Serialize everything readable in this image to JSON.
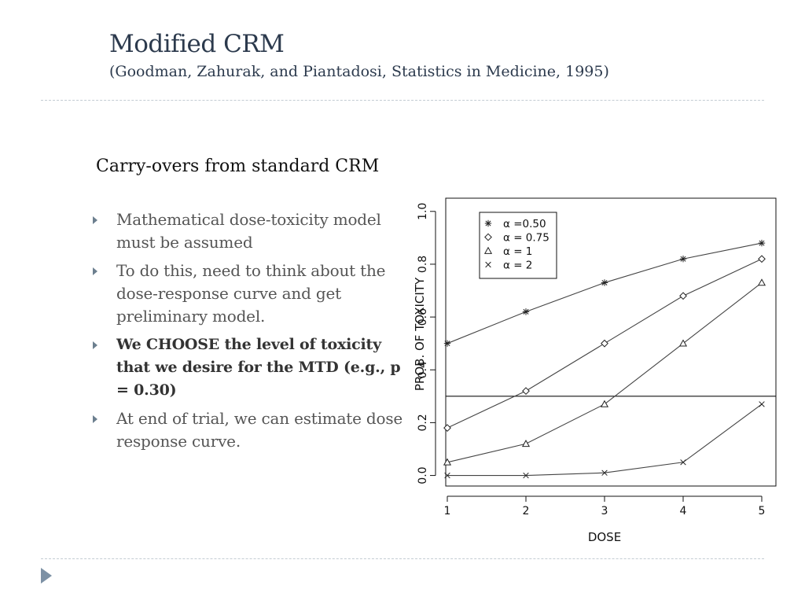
{
  "slide": {
    "title": "Modified CRM",
    "subtitle": "(Goodman, Zahurak, and Piantadosi, Statistics in Medicine, 1995)"
  },
  "content": {
    "heading": "Carry-overs from standard CRM",
    "bullets": [
      {
        "text": "Mathematical dose-toxicity model must be assumed",
        "bold": false
      },
      {
        "text": "To do this, need to think about the dose-response curve and get preliminary model.",
        "bold": false
      },
      {
        "text": "We CHOOSE the level of toxicity that we desire for the MTD (e.g., p = 0.30)",
        "bold": true
      },
      {
        "text": "At end of trial, we can estimate dose response curve.",
        "bold": false
      }
    ]
  },
  "chart_data": {
    "type": "line",
    "xlabel": "DOSE",
    "ylabel": "PROB. OF TOXICITY",
    "x": [
      1,
      2,
      3,
      4,
      5
    ],
    "xlim": [
      0.98,
      5.18
    ],
    "ylim": [
      -0.04,
      1.05
    ],
    "xticks": [
      1,
      2,
      3,
      4,
      5
    ],
    "yticks": [
      0.0,
      0.2,
      0.4,
      0.6,
      0.8,
      1.0
    ],
    "ytick_labels": [
      "0.0",
      "0.2",
      "0.4",
      "0.6",
      "0.8",
      "1.0"
    ],
    "hline": 0.3,
    "legend_position": "top-left",
    "series": [
      {
        "name": "α =0.50",
        "marker": "asterisk",
        "values": [
          0.5,
          0.62,
          0.73,
          0.82,
          0.88
        ]
      },
      {
        "name": "α = 0.75",
        "marker": "diamond",
        "values": [
          0.18,
          0.32,
          0.5,
          0.68,
          0.82
        ]
      },
      {
        "name": "α = 1",
        "marker": "triangle",
        "values": [
          0.05,
          0.12,
          0.27,
          0.5,
          0.73
        ]
      },
      {
        "name": "α = 2",
        "marker": "cross",
        "values": [
          0.0,
          0.0,
          0.01,
          0.05,
          0.27
        ]
      }
    ]
  }
}
